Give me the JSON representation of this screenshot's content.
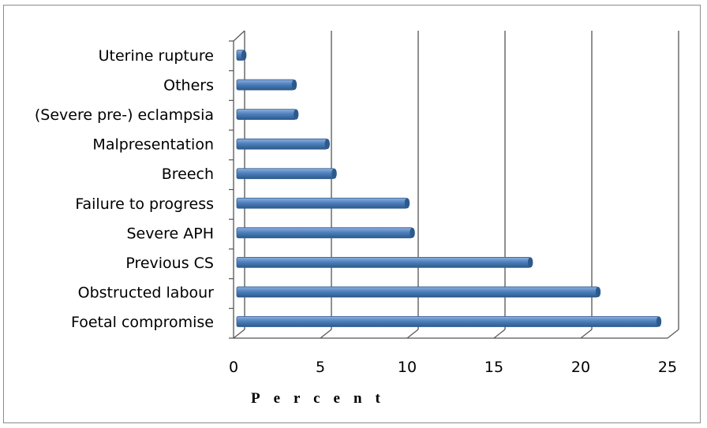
{
  "chart_data": {
    "type": "bar",
    "orientation": "horizontal",
    "categories": [
      "Foetal compromise",
      "Obstructed labour",
      "Previous CS",
      "Severe APH",
      "Failure to progress",
      "Breech",
      "Malpresentation",
      "(Severe pre-) eclampsia",
      "Others",
      "Uterine rupture"
    ],
    "values": [
      24.5,
      21.0,
      17.1,
      10.3,
      10.0,
      5.8,
      5.4,
      3.6,
      3.5,
      0.6
    ],
    "xlabel": "Percent",
    "xlim": [
      0,
      25
    ],
    "xticks": [
      "0",
      "5",
      "10",
      "15",
      "20",
      "25"
    ],
    "grid": true,
    "legend": "none",
    "bar_color": "#4f81bd",
    "bar_shadow_color": "#2c5a8c",
    "bar_highlight_color": "#8fb0e0",
    "grid_color": "#555555",
    "frame_color": "#8c8c8c"
  }
}
